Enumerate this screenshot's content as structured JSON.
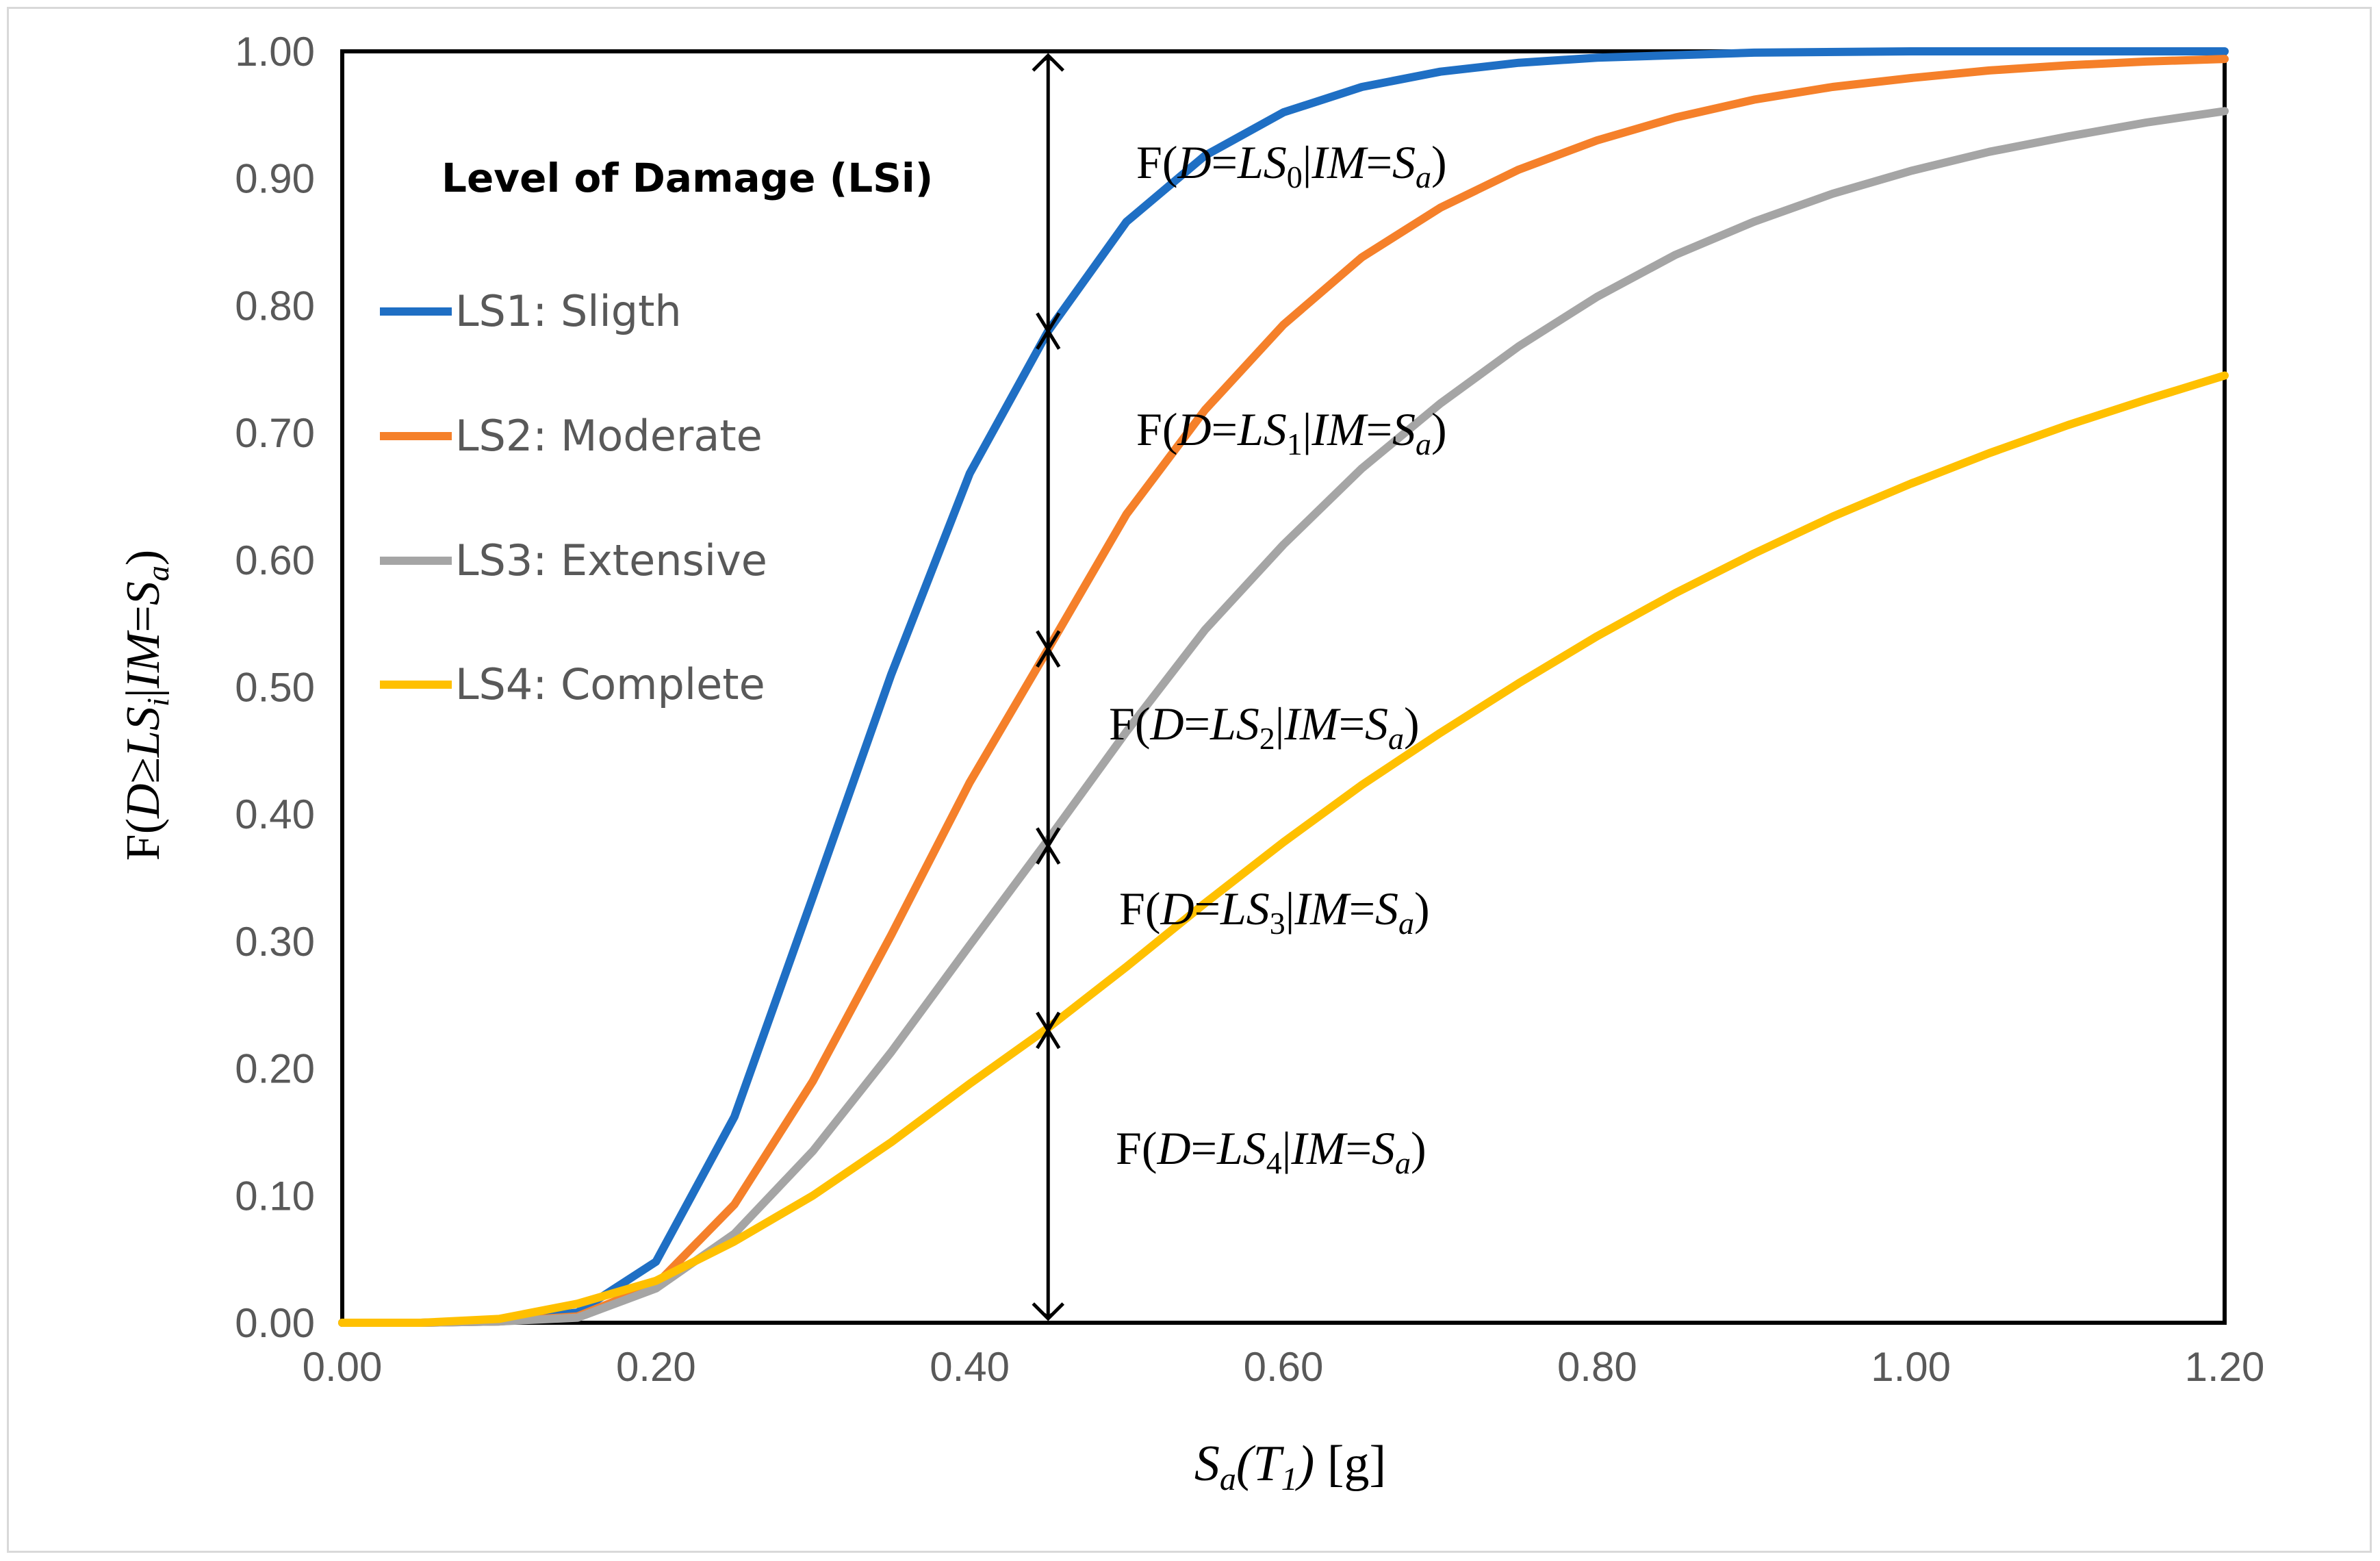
{
  "chart_data": {
    "type": "line",
    "xlabel": {
      "main": "S",
      "sub": "a",
      "paren_open": "(T",
      "paren_sub": "1",
      "paren_close": ")",
      "unit": " [g]"
    },
    "ylabel": {
      "prefix": "F(",
      "D": "D",
      "ge": "≥",
      "LS": "LS",
      "sub_i": "i",
      "bar": "|",
      "IM": "IM",
      "eq": "=",
      "S": "S",
      "sub_a": "a",
      "close": ")"
    },
    "xlim": [
      0,
      1.2
    ],
    "ylim": [
      0,
      1
    ],
    "x_ticks": [
      "0.00",
      "0.20",
      "0.40",
      "0.60",
      "0.80",
      "1.00",
      "1.20"
    ],
    "y_ticks": [
      "0.00",
      "0.10",
      "0.20",
      "0.30",
      "0.40",
      "0.50",
      "0.60",
      "0.70",
      "0.80",
      "0.90",
      "1.00"
    ],
    "legend_title": "Level of Damage (LSi)",
    "series": [
      {
        "name": "LS1: Sligth",
        "color": "#1f6fc4",
        "x": [
          0,
          0.05,
          0.1,
          0.15,
          0.2,
          0.25,
          0.3,
          0.35,
          0.4,
          0.45,
          0.5,
          0.55,
          0.6,
          0.65,
          0.7,
          0.75,
          0.8,
          0.85,
          0.9,
          1.0,
          1.1,
          1.2
        ],
        "y": [
          0,
          0,
          0.001,
          0.008,
          0.048,
          0.162,
          0.335,
          0.51,
          0.668,
          0.78,
          0.866,
          0.918,
          0.952,
          0.972,
          0.984,
          0.991,
          0.995,
          0.997,
          0.999,
          1.0,
          1.0,
          1.0
        ]
      },
      {
        "name": "LS2: Moderate",
        "color": "#f5802a",
        "x": [
          0,
          0.05,
          0.1,
          0.15,
          0.2,
          0.25,
          0.3,
          0.35,
          0.4,
          0.45,
          0.5,
          0.55,
          0.6,
          0.65,
          0.7,
          0.75,
          0.8,
          0.85,
          0.9,
          0.95,
          1.0,
          1.05,
          1.1,
          1.15,
          1.2
        ],
        "y": [
          0,
          0,
          0.001,
          0.005,
          0.03,
          0.093,
          0.19,
          0.305,
          0.425,
          0.53,
          0.636,
          0.718,
          0.785,
          0.838,
          0.877,
          0.907,
          0.93,
          0.948,
          0.962,
          0.972,
          0.979,
          0.985,
          0.989,
          0.992,
          0.994
        ]
      },
      {
        "name": "LS3: Extensive",
        "color": "#a5a5a5",
        "x": [
          0,
          0.05,
          0.1,
          0.15,
          0.2,
          0.25,
          0.3,
          0.35,
          0.4,
          0.45,
          0.5,
          0.55,
          0.6,
          0.65,
          0.7,
          0.75,
          0.8,
          0.85,
          0.9,
          0.95,
          1.0,
          1.05,
          1.1,
          1.15,
          1.2
        ],
        "y": [
          0,
          0,
          0.001,
          0.004,
          0.027,
          0.07,
          0.135,
          0.213,
          0.297,
          0.38,
          0.465,
          0.545,
          0.612,
          0.672,
          0.723,
          0.768,
          0.807,
          0.84,
          0.866,
          0.888,
          0.906,
          0.921,
          0.933,
          0.944,
          0.953
        ]
      },
      {
        "name": "LS4: Complete",
        "color": "#ffc000",
        "x": [
          0,
          0.05,
          0.1,
          0.15,
          0.2,
          0.25,
          0.3,
          0.35,
          0.4,
          0.45,
          0.5,
          0.55,
          0.6,
          0.65,
          0.7,
          0.75,
          0.8,
          0.85,
          0.9,
          0.95,
          1.0,
          1.05,
          1.1,
          1.15,
          1.2
        ],
        "y": [
          0,
          0,
          0.003,
          0.015,
          0.033,
          0.064,
          0.1,
          0.142,
          0.188,
          0.232,
          0.28,
          0.33,
          0.378,
          0.423,
          0.464,
          0.503,
          0.54,
          0.574,
          0.605,
          0.634,
          0.66,
          0.684,
          0.706,
          0.726,
          0.745
        ]
      }
    ],
    "arrow": {
      "x": 0.45,
      "y_from": 0,
      "y_to": 1,
      "markers": [
        0.78,
        0.53,
        0.375,
        0.23
      ]
    },
    "annotations": [
      {
        "prefix": "F(",
        "D": "D",
        "eq": "=",
        "LS": "LS",
        "sub": "0",
        "bar": "|",
        "IM": "IM",
        "eq2": "=",
        "S": "S",
        "sub_a": "a",
        "close": ")"
      },
      {
        "prefix": "F(",
        "D": "D",
        "eq": "=",
        "LS": "LS",
        "sub": "1",
        "bar": "|",
        "IM": "IM",
        "eq2": "=",
        "S": "S",
        "sub_a": "a",
        "close": ")"
      },
      {
        "prefix": "F(",
        "D": "D",
        "eq": "=",
        "LS": "LS",
        "sub": "2",
        "bar": "|",
        "IM": "IM",
        "eq2": "=",
        "S": "S",
        "sub_a": "a",
        "close": ")"
      },
      {
        "prefix": "F(",
        "D": "D",
        "eq": "=",
        "LS": "LS",
        "sub": "3",
        "bar": "|",
        "IM": "IM",
        "eq2": "=",
        "S": "S",
        "sub_a": "a",
        "close": ")"
      },
      {
        "prefix": "F(",
        "D": "D",
        "eq": "=",
        "LS": "LS",
        "sub": "4",
        "bar": "|",
        "IM": "IM",
        "eq2": "=",
        "S": "S",
        "sub_a": "a",
        "close": ")"
      }
    ]
  }
}
